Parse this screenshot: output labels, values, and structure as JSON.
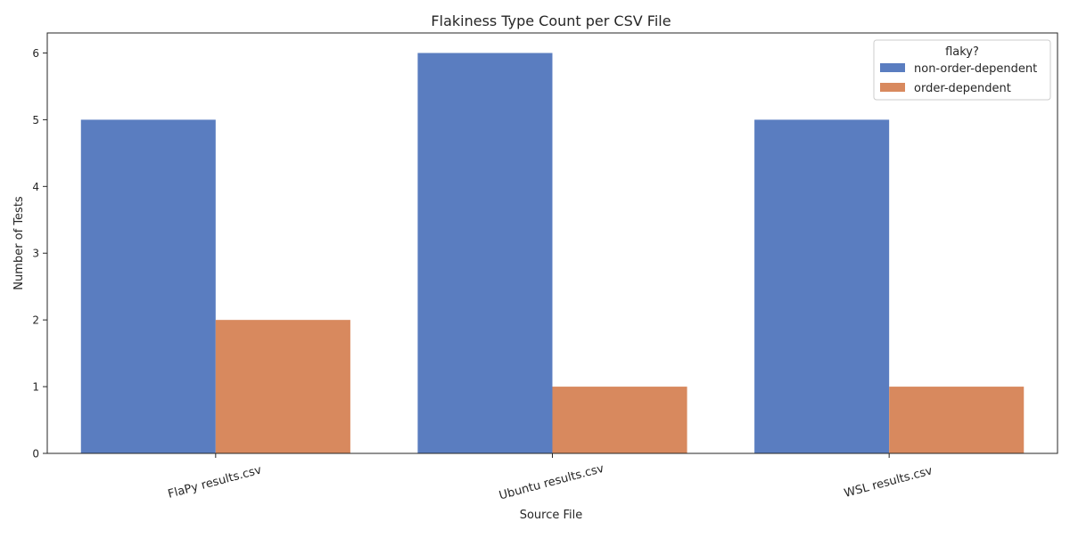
{
  "chart_data": {
    "type": "bar",
    "title": "Flakiness Type Count per CSV File",
    "xlabel": "Source File",
    "ylabel": "Number of Tests",
    "categories": [
      "FlaPy results.csv",
      "Ubuntu results.csv",
      "WSL results.csv"
    ],
    "series": [
      {
        "name": "non-order-dependent",
        "color": "#5a7dc0",
        "values": [
          5,
          6,
          5
        ]
      },
      {
        "name": "order-dependent",
        "color": "#d8895e",
        "values": [
          2,
          1,
          1
        ]
      }
    ],
    "ylim": [
      0,
      6.3
    ],
    "yticks": [
      "0",
      "1",
      "2",
      "3",
      "4",
      "5",
      "6"
    ],
    "grid": false,
    "legend": {
      "title": "flaky?",
      "placement": "top-right"
    }
  }
}
